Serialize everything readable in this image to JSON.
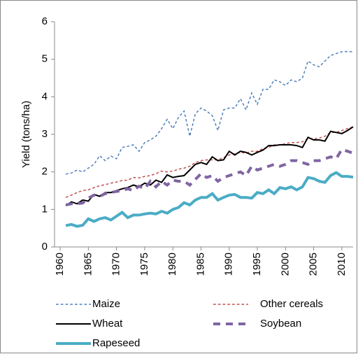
{
  "chart_data": {
    "type": "line",
    "y_label": "Yield (tons/ha)",
    "x": [
      1961,
      1962,
      1963,
      1964,
      1965,
      1966,
      1967,
      1968,
      1969,
      1970,
      1971,
      1972,
      1973,
      1974,
      1975,
      1976,
      1977,
      1978,
      1979,
      1980,
      1981,
      1982,
      1983,
      1984,
      1985,
      1986,
      1987,
      1988,
      1989,
      1990,
      1991,
      1992,
      1993,
      1994,
      1995,
      1996,
      1997,
      1998,
      1999,
      2000,
      2001,
      2002,
      2003,
      2004,
      2005,
      2006,
      2007,
      2008,
      2009,
      2010,
      2011,
      2012
    ],
    "series": [
      {
        "name": "Maize",
        "color": "#4f81bd",
        "dashed": true,
        "line_width": 1.5,
        "values": [
          1.94,
          1.97,
          2.05,
          2.0,
          2.1,
          2.2,
          2.43,
          2.3,
          2.42,
          2.35,
          2.65,
          2.68,
          2.72,
          2.55,
          2.78,
          2.85,
          2.95,
          3.15,
          3.4,
          3.15,
          3.45,
          3.62,
          2.95,
          3.55,
          3.7,
          3.62,
          3.5,
          3.1,
          3.65,
          3.7,
          3.7,
          3.95,
          3.65,
          4.1,
          3.8,
          4.2,
          4.2,
          4.45,
          4.4,
          4.3,
          4.45,
          4.4,
          4.5,
          4.95,
          4.85,
          4.8,
          4.95,
          5.1,
          5.15,
          5.2,
          5.2,
          5.2
        ]
      },
      {
        "name": "Other cereals",
        "color": "#c0504d",
        "dashed": true,
        "line_width": 1.5,
        "values": [
          1.32,
          1.38,
          1.45,
          1.5,
          1.52,
          1.58,
          1.63,
          1.66,
          1.7,
          1.73,
          1.77,
          1.78,
          1.85,
          1.84,
          1.88,
          1.9,
          1.95,
          2.02,
          2.0,
          2.02,
          2.07,
          2.1,
          2.15,
          2.25,
          2.3,
          2.32,
          2.32,
          2.32,
          2.38,
          2.45,
          2.48,
          2.52,
          2.5,
          2.55,
          2.55,
          2.62,
          2.65,
          2.72,
          2.72,
          2.75,
          2.78,
          2.78,
          2.8,
          2.88,
          2.88,
          2.9,
          2.95,
          3.05,
          3.05,
          3.1,
          3.15,
          3.2
        ]
      },
      {
        "name": "Wheat",
        "color": "#000000",
        "dashed": false,
        "line_width": 2,
        "values": [
          1.1,
          1.2,
          1.15,
          1.25,
          1.22,
          1.4,
          1.35,
          1.45,
          1.45,
          1.5,
          1.55,
          1.58,
          1.65,
          1.6,
          1.7,
          1.65,
          1.78,
          1.72,
          1.92,
          1.85,
          1.88,
          1.9,
          2.05,
          2.2,
          2.25,
          2.2,
          2.4,
          2.3,
          2.32,
          2.55,
          2.45,
          2.55,
          2.52,
          2.45,
          2.52,
          2.58,
          2.7,
          2.7,
          2.72,
          2.72,
          2.72,
          2.7,
          2.65,
          2.92,
          2.85,
          2.85,
          2.82,
          3.08,
          3.05,
          3.02,
          3.1,
          3.2
        ]
      },
      {
        "name": "Soybean",
        "color": "#8064a2",
        "dashed": true,
        "line_width": 4,
        "values": [
          1.12,
          1.15,
          1.15,
          1.17,
          1.3,
          1.38,
          1.35,
          1.42,
          1.45,
          1.48,
          1.5,
          1.55,
          1.5,
          1.62,
          1.55,
          1.75,
          1.6,
          1.75,
          1.65,
          1.78,
          1.75,
          1.75,
          1.65,
          1.8,
          1.95,
          1.85,
          1.9,
          1.75,
          1.85,
          1.9,
          1.95,
          2.0,
          1.9,
          2.15,
          2.05,
          2.1,
          2.15,
          2.2,
          2.15,
          2.2,
          2.3,
          2.3,
          2.25,
          2.2,
          2.3,
          2.3,
          2.35,
          2.4,
          2.35,
          2.6,
          2.55,
          2.5
        ]
      },
      {
        "name": "Rapeseed",
        "color": "#4bacc6",
        "dashed": false,
        "line_width": 4,
        "values": [
          0.57,
          0.6,
          0.55,
          0.58,
          0.75,
          0.68,
          0.75,
          0.78,
          0.72,
          0.82,
          0.92,
          0.78,
          0.85,
          0.85,
          0.88,
          0.9,
          0.88,
          0.95,
          0.9,
          1.0,
          1.05,
          1.18,
          1.12,
          1.25,
          1.32,
          1.32,
          1.42,
          1.25,
          1.32,
          1.38,
          1.4,
          1.32,
          1.32,
          1.3,
          1.45,
          1.42,
          1.52,
          1.42,
          1.58,
          1.55,
          1.6,
          1.52,
          1.6,
          1.85,
          1.82,
          1.75,
          1.72,
          1.9,
          1.98,
          1.88,
          1.88,
          1.86
        ]
      }
    ],
    "xlim": [
      1959,
      2012
    ],
    "xticks": [
      1960,
      1965,
      1970,
      1975,
      1980,
      1985,
      1990,
      1995,
      2000,
      2005,
      2010
    ],
    "ylim": [
      0,
      6
    ],
    "yticks": [
      0,
      1,
      2,
      3,
      4,
      5,
      6
    ],
    "grid": false,
    "legend": "bottom"
  }
}
